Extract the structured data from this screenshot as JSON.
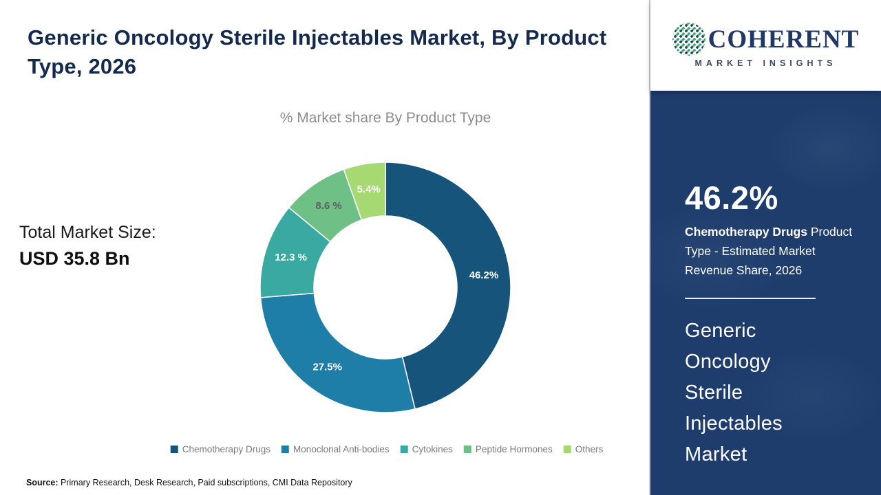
{
  "header": {
    "title": "Generic Oncology Sterile Injectables Market, By Product Type, 2026"
  },
  "chart_data": {
    "type": "donut",
    "title": "% Market share By Product Type",
    "start_angle_deg": 0,
    "direction": "clockwise",
    "legend_position": "bottom",
    "segments": [
      {
        "label": "Chemotherapy Drugs",
        "value": 46.2,
        "display": "46.2%",
        "color": "#17547c",
        "label_color": "#ffffff"
      },
      {
        "label": "Monoclonal Anti-bodies",
        "value": 27.5,
        "display": "27.5%",
        "color": "#1f7ea8",
        "label_color": "#ffffff"
      },
      {
        "label": "Cytokines",
        "value": 12.3,
        "display": "12.3 %",
        "color": "#39a9a1",
        "label_color": "#ffffff"
      },
      {
        "label": "Peptide Hormones",
        "value": 8.6,
        "display": "8.6 %",
        "color": "#6fc087",
        "label_color": "#5f6062"
      },
      {
        "label": "Others",
        "value": 5.4,
        "display": "5.4%",
        "color": "#a6d971",
        "label_color": "#ffffff"
      }
    ]
  },
  "market_size": {
    "label": "Total Market Size:",
    "value": "USD 35.8 Bn"
  },
  "source": {
    "label": "Source:",
    "text": " Primary Research, Desk Research, Paid subscriptions, CMI Data Repository"
  },
  "sidebar": {
    "logo": {
      "brand": "COHERENT",
      "tagline": "MARKET INSIGHTS"
    },
    "stat_value": "46.2%",
    "stat_label_bold": "Chemotherapy Drugs",
    "stat_label_rest": "Product Type - Estimated Market Revenue Share, 2026",
    "market_name": "Generic Oncology Sterile Injectables Market",
    "colors": {
      "background": "#1e3d6d",
      "accent": "#2aa6a0"
    }
  }
}
